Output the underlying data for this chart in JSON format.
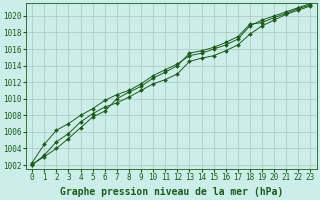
{
  "title": "Graphe pression niveau de la mer (hPa)",
  "bg_color": "#cceee8",
  "grid_color": "#aabbbb",
  "line_color": "#1a5c1a",
  "marker_color": "#1a5c1a",
  "xlim": [
    -0.5,
    23.5
  ],
  "ylim": [
    1001.5,
    1021.5
  ],
  "xticks": [
    0,
    1,
    2,
    3,
    4,
    5,
    6,
    7,
    8,
    9,
    10,
    11,
    12,
    13,
    14,
    15,
    16,
    17,
    18,
    19,
    20,
    21,
    22,
    23
  ],
  "yticks": [
    1002,
    1004,
    1006,
    1008,
    1010,
    1012,
    1014,
    1016,
    1018,
    1020
  ],
  "line1": [
    1002.0,
    1003.2,
    1004.8,
    1005.8,
    1007.2,
    1008.2,
    1009.0,
    1009.5,
    1010.2,
    1011.0,
    1011.8,
    1012.3,
    1013.0,
    1014.5,
    1014.9,
    1015.2,
    1015.8,
    1016.5,
    1017.8,
    1018.8,
    1019.5,
    1020.2,
    1020.7,
    1021.2
  ],
  "line2": [
    1002.3,
    1004.5,
    1006.2,
    1007.0,
    1008.0,
    1008.8,
    1009.8,
    1010.5,
    1011.0,
    1011.8,
    1012.8,
    1013.5,
    1014.2,
    1015.2,
    1015.5,
    1016.0,
    1016.5,
    1017.2,
    1018.8,
    1019.5,
    1020.0,
    1020.5,
    1021.0,
    1021.5
  ],
  "line3": [
    1002.1,
    1003.0,
    1004.0,
    1005.2,
    1006.5,
    1007.8,
    1008.5,
    1010.0,
    1010.8,
    1011.5,
    1012.5,
    1013.2,
    1014.0,
    1015.5,
    1015.8,
    1016.2,
    1016.8,
    1017.5,
    1019.0,
    1019.2,
    1019.8,
    1020.3,
    1020.9,
    1021.3
  ],
  "title_fontsize": 7,
  "tick_fontsize": 5.5,
  "title_color": "#1a5c1a",
  "tick_color": "#1a5c1a",
  "spine_color": "#1a5c1a"
}
